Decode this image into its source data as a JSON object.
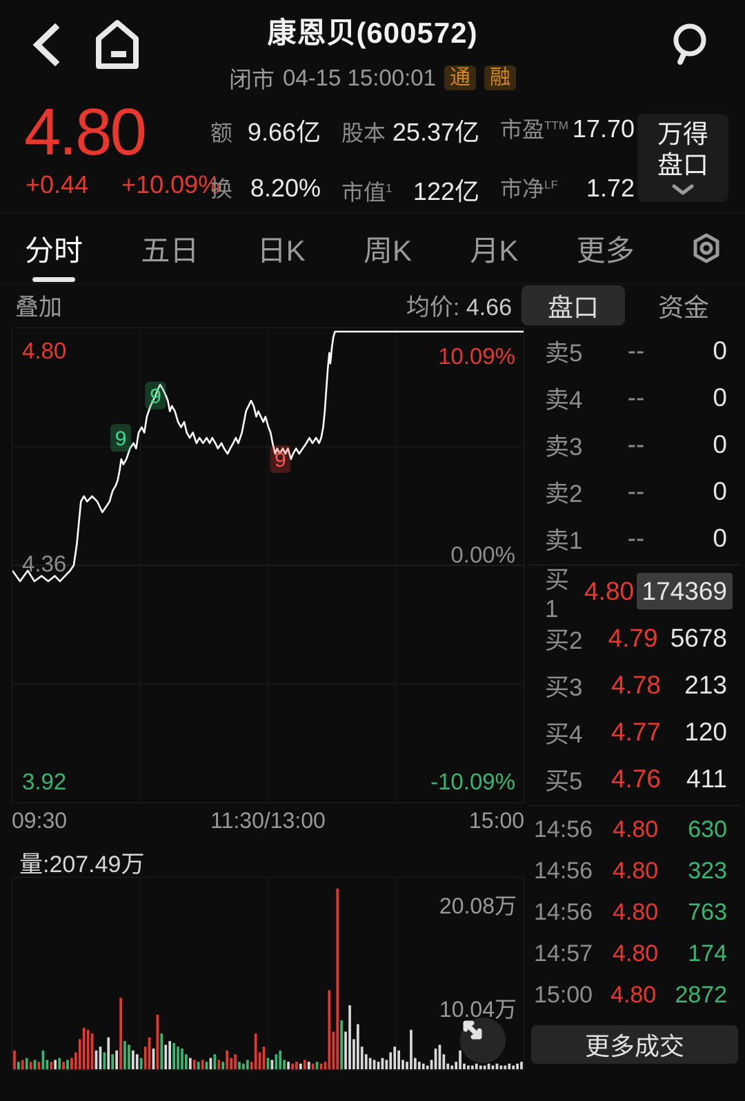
{
  "header": {
    "title": "康恩贝(600572)",
    "status": "闭市",
    "datetime": "04-15 15:00:01",
    "badges": [
      "通",
      "融"
    ]
  },
  "quote": {
    "price": "4.80",
    "change": "+0.44",
    "change_pct": "+10.09%",
    "stats": [
      {
        "label": "额",
        "sup": "",
        "value": "9.66亿"
      },
      {
        "label": "股本",
        "sup": "",
        "value": "25.37亿"
      },
      {
        "label": "市盈",
        "sup": "TTM",
        "value": "17.70"
      },
      {
        "label": "换",
        "sup": "",
        "value": "8.20%"
      },
      {
        "label": "市值",
        "sup": "1",
        "value": "122亿"
      },
      {
        "label": "市净",
        "sup": "LF",
        "value": "1.72"
      }
    ],
    "wind_button": {
      "line1": "万得",
      "line2": "盘口"
    }
  },
  "tabs": {
    "items": [
      "分时",
      "五日",
      "日K",
      "周K",
      "月K",
      "更多"
    ],
    "active": "分时"
  },
  "chart_header": {
    "overlay_label": "叠加",
    "avg_label": "均价:",
    "avg_value": "4.66",
    "panel_tabs": [
      "盘口",
      "资金"
    ],
    "active_panel_tab": "盘口"
  },
  "chart_data": {
    "type": "line",
    "title": "分时 (intraday minute chart)",
    "x_axis_ticks": [
      "09:30",
      "11:30/13:00",
      "15:00"
    ],
    "y_left_labels": [
      "4.80",
      "4.36",
      "3.92"
    ],
    "y_right_labels": [
      "10.09%",
      "0.00%",
      "-10.09%"
    ],
    "ylim": [
      3.92,
      4.8
    ],
    "prev_close": 4.36,
    "limit_up_pct": "10.09%",
    "grid": true,
    "points": [
      [
        0,
        4.35
      ],
      [
        1.5,
        4.33
      ],
      [
        3,
        4.35
      ],
      [
        4.3,
        4.33
      ],
      [
        5.7,
        4.34
      ],
      [
        7,
        4.33
      ],
      [
        8.3,
        4.34
      ],
      [
        9.3,
        4.33
      ],
      [
        10.3,
        4.34
      ],
      [
        11.3,
        4.35
      ],
      [
        12,
        4.36
      ],
      [
        12.6,
        4.4
      ],
      [
        13,
        4.44
      ],
      [
        13.4,
        4.48
      ],
      [
        14,
        4.49
      ],
      [
        14.6,
        4.48
      ],
      [
        15.6,
        4.49
      ],
      [
        16.6,
        4.48
      ],
      [
        17.6,
        4.46
      ],
      [
        18.3,
        4.47
      ],
      [
        19,
        4.48
      ],
      [
        19.6,
        4.5
      ],
      [
        20.2,
        4.51
      ],
      [
        20.6,
        4.52
      ],
      [
        21,
        4.54
      ],
      [
        21.3,
        4.56
      ],
      [
        21.7,
        4.55
      ],
      [
        22.3,
        4.56
      ],
      [
        23,
        4.58
      ],
      [
        23.7,
        4.59
      ],
      [
        24.2,
        4.58
      ],
      [
        24.7,
        4.61
      ],
      [
        25.3,
        4.62
      ],
      [
        25.8,
        4.61
      ],
      [
        26.3,
        4.64
      ],
      [
        27,
        4.66
      ],
      [
        27.5,
        4.67
      ],
      [
        28,
        4.68
      ],
      [
        28.4,
        4.69
      ],
      [
        28.9,
        4.7
      ],
      [
        29.5,
        4.69
      ],
      [
        30,
        4.68
      ],
      [
        30.4,
        4.67
      ],
      [
        30.8,
        4.65
      ],
      [
        31.2,
        4.66
      ],
      [
        31.8,
        4.65
      ],
      [
        32.4,
        4.63
      ],
      [
        33,
        4.62
      ],
      [
        33.6,
        4.63
      ],
      [
        34.1,
        4.61
      ],
      [
        34.7,
        4.6
      ],
      [
        35.3,
        4.61
      ],
      [
        36,
        4.59
      ],
      [
        36.6,
        4.6
      ],
      [
        37.3,
        4.59
      ],
      [
        38,
        4.6
      ],
      [
        38.6,
        4.59
      ],
      [
        39.1,
        4.6
      ],
      [
        39.7,
        4.59
      ],
      [
        40.2,
        4.58
      ],
      [
        40.9,
        4.59
      ],
      [
        41.4,
        4.58
      ],
      [
        42.1,
        4.57
      ],
      [
        42.6,
        4.58
      ],
      [
        43.2,
        4.59
      ],
      [
        43.7,
        4.6
      ],
      [
        44.2,
        4.59
      ],
      [
        44.9,
        4.61
      ],
      [
        45.3,
        4.63
      ],
      [
        45.7,
        4.65
      ],
      [
        46.2,
        4.66
      ],
      [
        46.7,
        4.67
      ],
      [
        47.2,
        4.66
      ],
      [
        47.7,
        4.64
      ],
      [
        48.1,
        4.65
      ],
      [
        48.6,
        4.64
      ],
      [
        49.1,
        4.63
      ],
      [
        49.5,
        4.64
      ],
      [
        50.1,
        4.62
      ],
      [
        50.5,
        4.61
      ],
      [
        50.9,
        4.59
      ],
      [
        51.4,
        4.57
      ],
      [
        51.8,
        4.58
      ],
      [
        52.3,
        4.57
      ],
      [
        52.9,
        4.58
      ],
      [
        53.4,
        4.57
      ],
      [
        53.9,
        4.58
      ],
      [
        54.5,
        4.56
      ],
      [
        54.9,
        4.57
      ],
      [
        55.5,
        4.58
      ],
      [
        56.1,
        4.57
      ],
      [
        56.8,
        4.58
      ],
      [
        57.5,
        4.59
      ],
      [
        58.1,
        4.6
      ],
      [
        58.7,
        4.59
      ],
      [
        59.4,
        4.6
      ],
      [
        60,
        4.59
      ],
      [
        60.4,
        4.6
      ],
      [
        60.8,
        4.62
      ],
      [
        61.1,
        4.65
      ],
      [
        61.4,
        4.69
      ],
      [
        61.7,
        4.73
      ],
      [
        62,
        4.76
      ],
      [
        62.2,
        4.74
      ],
      [
        62.5,
        4.77
      ],
      [
        62.8,
        4.79
      ],
      [
        63.1,
        4.8
      ],
      [
        100,
        4.8
      ]
    ],
    "markers": [
      {
        "text": "9",
        "kind": "green",
        "x_pct": 21.2,
        "price": 4.6
      },
      {
        "text": "9",
        "kind": "green",
        "x_pct": 28.0,
        "price": 4.68
      },
      {
        "text": "9",
        "kind": "red",
        "x_pct": 52.4,
        "price": 4.56
      }
    ],
    "volume_bars": [
      [
        0.1,
        "r"
      ],
      [
        0.04,
        "g"
      ],
      [
        0.05,
        "r"
      ],
      [
        0.06,
        "g"
      ],
      [
        0.04,
        "r"
      ],
      [
        0.05,
        "g"
      ],
      [
        0.04,
        "r"
      ],
      [
        0.1,
        "g"
      ],
      [
        0.05,
        "g"
      ],
      [
        0.04,
        "r"
      ],
      [
        0.05,
        "w"
      ],
      [
        0.06,
        "g"
      ],
      [
        0.04,
        "r"
      ],
      [
        0.05,
        "g"
      ],
      [
        0.06,
        "r"
      ],
      [
        0.09,
        "r"
      ],
      [
        0.16,
        "r"
      ],
      [
        0.22,
        "r"
      ],
      [
        0.21,
        "r"
      ],
      [
        0.19,
        "r"
      ],
      [
        0.1,
        "w"
      ],
      [
        0.12,
        "w"
      ],
      [
        0.09,
        "g"
      ],
      [
        0.17,
        "w"
      ],
      [
        0.08,
        "g"
      ],
      [
        0.1,
        "w"
      ],
      [
        0.38,
        "r"
      ],
      [
        0.15,
        "g"
      ],
      [
        0.13,
        "g"
      ],
      [
        0.1,
        "w"
      ],
      [
        0.08,
        "w"
      ],
      [
        0.06,
        "g"
      ],
      [
        0.12,
        "r"
      ],
      [
        0.17,
        "r"
      ],
      [
        0.11,
        "w"
      ],
      [
        0.29,
        "r"
      ],
      [
        0.19,
        "g"
      ],
      [
        0.13,
        "w"
      ],
      [
        0.15,
        "w"
      ],
      [
        0.14,
        "g"
      ],
      [
        0.12,
        "g"
      ],
      [
        0.11,
        "g"
      ],
      [
        0.08,
        "g"
      ],
      [
        0.06,
        "w"
      ],
      [
        0.05,
        "r"
      ],
      [
        0.04,
        "g"
      ],
      [
        0.05,
        "r"
      ],
      [
        0.04,
        "g"
      ],
      [
        0.06,
        "w"
      ],
      [
        0.08,
        "g"
      ],
      [
        0.05,
        "r"
      ],
      [
        0.04,
        "g"
      ],
      [
        0.1,
        "r"
      ],
      [
        0.06,
        "r"
      ],
      [
        0.08,
        "r"
      ],
      [
        0.04,
        "g"
      ],
      [
        0.03,
        "g"
      ],
      [
        0.05,
        "g"
      ],
      [
        0.04,
        "r"
      ],
      [
        0.19,
        "r"
      ],
      [
        0.09,
        "r"
      ],
      [
        0.12,
        "r"
      ],
      [
        0.06,
        "g"
      ],
      [
        0.05,
        "w"
      ],
      [
        0.08,
        "g"
      ],
      [
        0.1,
        "g"
      ],
      [
        0.05,
        "g"
      ],
      [
        0.04,
        "w"
      ],
      [
        0.03,
        "r"
      ],
      [
        0.04,
        "r"
      ],
      [
        0.03,
        "w"
      ],
      [
        0.05,
        "r"
      ],
      [
        0.04,
        "w"
      ],
      [
        0.03,
        "r"
      ],
      [
        0.04,
        "g"
      ],
      [
        0.03,
        "r"
      ],
      [
        0.04,
        "r"
      ],
      [
        0.42,
        "r"
      ],
      [
        0.2,
        "r"
      ],
      [
        0.96,
        "r"
      ],
      [
        0.26,
        "g"
      ],
      [
        0.2,
        "w"
      ],
      [
        0.34,
        "w"
      ],
      [
        0.16,
        "w"
      ],
      [
        0.24,
        "w"
      ],
      [
        0.12,
        "w"
      ],
      [
        0.08,
        "w"
      ],
      [
        0.06,
        "w"
      ],
      [
        0.05,
        "w"
      ],
      [
        0.04,
        "w"
      ],
      [
        0.06,
        "w"
      ],
      [
        0.05,
        "w"
      ],
      [
        0.09,
        "w"
      ],
      [
        0.12,
        "w"
      ],
      [
        0.1,
        "w"
      ],
      [
        0.05,
        "w"
      ],
      [
        0.04,
        "w"
      ],
      [
        0.21,
        "w"
      ],
      [
        0.06,
        "w"
      ],
      [
        0.04,
        "w"
      ],
      [
        0.03,
        "w"
      ],
      [
        0.02,
        "w"
      ],
      [
        0.05,
        "w"
      ],
      [
        0.11,
        "w"
      ],
      [
        0.13,
        "w"
      ],
      [
        0.08,
        "w"
      ],
      [
        0.03,
        "w"
      ],
      [
        0.02,
        "w"
      ],
      [
        0.04,
        "w"
      ],
      [
        0.1,
        "w"
      ],
      [
        0.03,
        "w"
      ],
      [
        0.02,
        "w"
      ],
      [
        0.02,
        "w"
      ],
      [
        0.03,
        "w"
      ],
      [
        0.02,
        "w"
      ],
      [
        0.02,
        "w"
      ],
      [
        0.03,
        "w"
      ],
      [
        0.02,
        "w"
      ],
      [
        0.03,
        "w"
      ],
      [
        0.02,
        "w"
      ],
      [
        0.02,
        "w"
      ],
      [
        0.03,
        "w"
      ],
      [
        0.02,
        "w"
      ],
      [
        0.03,
        "w"
      ],
      [
        0.04,
        "w"
      ]
    ]
  },
  "volume": {
    "label": "量:207.49万",
    "y_labels": [
      "20.08万",
      "10.04万"
    ]
  },
  "order_book": {
    "sells": [
      {
        "label": "卖5",
        "price": "--",
        "vol": "0"
      },
      {
        "label": "卖4",
        "price": "--",
        "vol": "0"
      },
      {
        "label": "卖3",
        "price": "--",
        "vol": "0"
      },
      {
        "label": "卖2",
        "price": "--",
        "vol": "0"
      },
      {
        "label": "卖1",
        "price": "--",
        "vol": "0"
      }
    ],
    "buys": [
      {
        "label": "买1",
        "price": "4.80",
        "vol": "174369"
      },
      {
        "label": "买2",
        "price": "4.79",
        "vol": "5678"
      },
      {
        "label": "买3",
        "price": "4.78",
        "vol": "213"
      },
      {
        "label": "买4",
        "price": "4.77",
        "vol": "120"
      },
      {
        "label": "买5",
        "price": "4.76",
        "vol": "411"
      }
    ]
  },
  "trades": {
    "rows": [
      {
        "time": "14:56",
        "price": "4.80",
        "vol": "630"
      },
      {
        "time": "14:56",
        "price": "4.80",
        "vol": "323"
      },
      {
        "time": "14:56",
        "price": "4.80",
        "vol": "763"
      },
      {
        "time": "14:57",
        "price": "4.80",
        "vol": "174"
      },
      {
        "time": "15:00",
        "price": "4.80",
        "vol": "2872"
      }
    ],
    "more_label": "更多成交"
  },
  "colors": {
    "red": "#e8382e",
    "green": "#36b873",
    "badge_orange": "#d0891e",
    "line": "#ffffff",
    "volume_neutral": "#d9d9d9",
    "grid": "#1d1d1d",
    "grid_mid": "#2a2a2a"
  }
}
